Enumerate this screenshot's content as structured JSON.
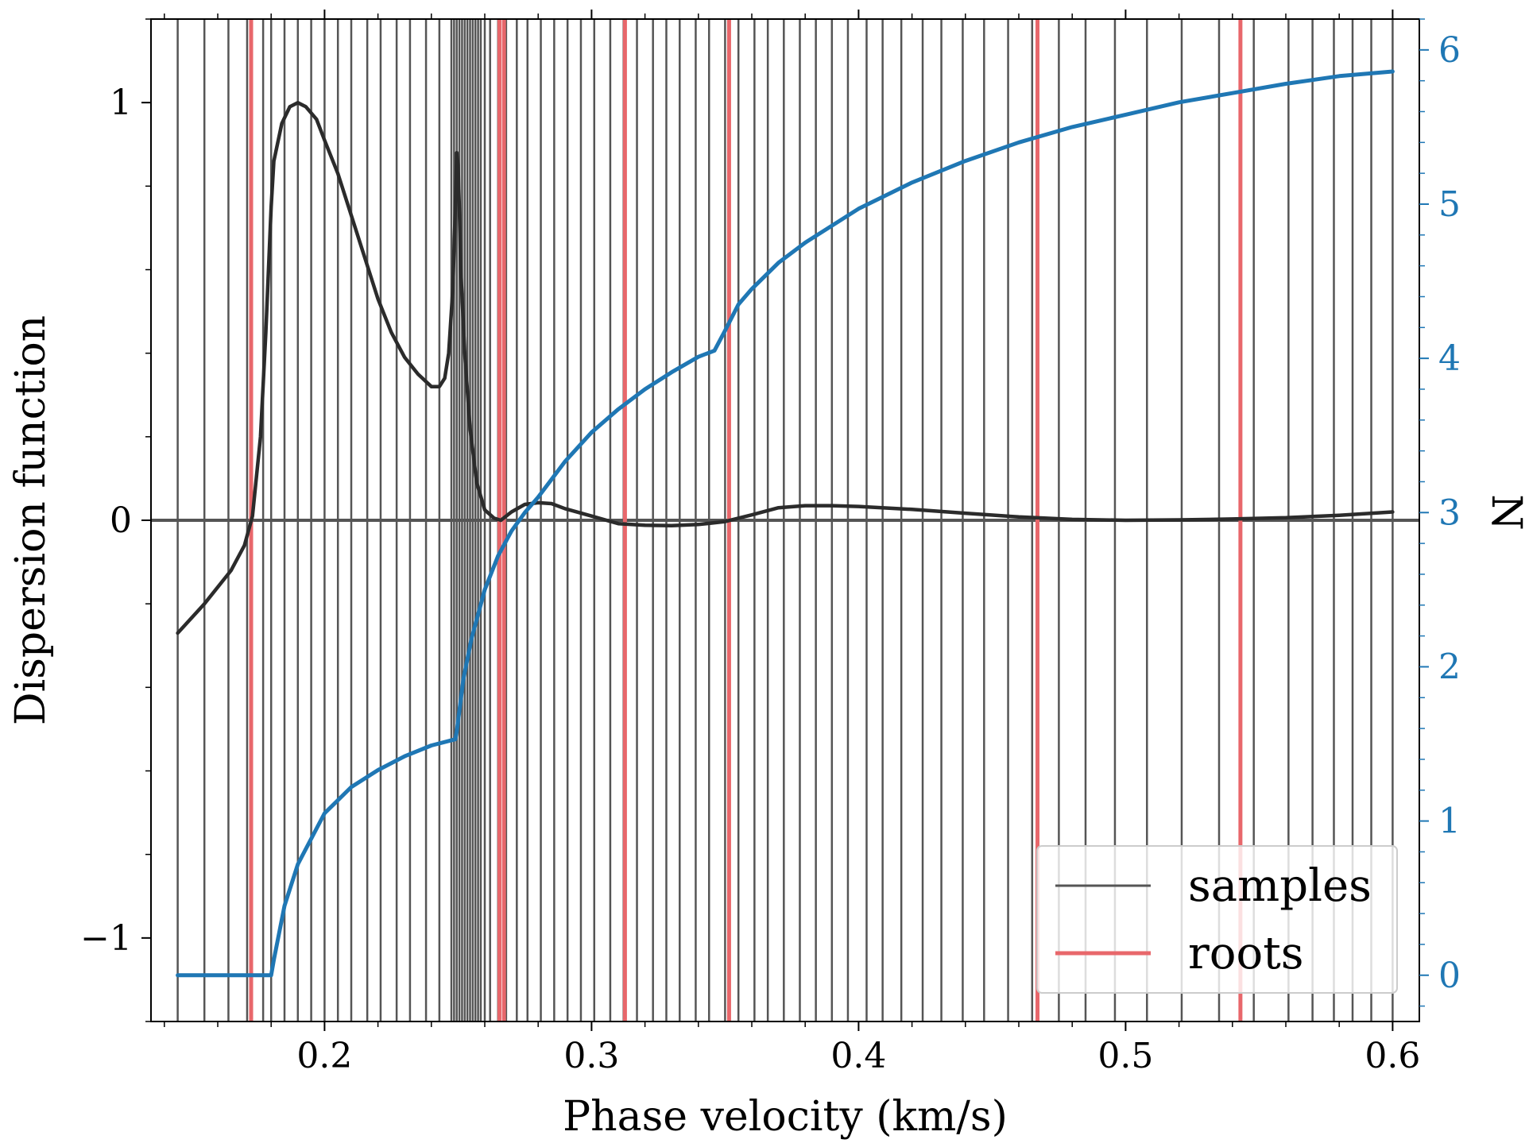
{
  "chart_data": {
    "type": "line",
    "xlabel": "Phase velocity (km/s)",
    "ylabel": "Dispersion function",
    "ylabel_right": "N",
    "xlim": [
      0.135,
      0.61
    ],
    "ylim": [
      -1.2,
      1.2
    ],
    "ylim_right": [
      -0.3,
      6.2
    ],
    "x_ticks": [
      0.2,
      0.3,
      0.4,
      0.5,
      0.6
    ],
    "x_tick_labels": [
      "0.2",
      "0.3",
      "0.4",
      "0.5",
      "0.6"
    ],
    "y_ticks": [
      -1,
      0,
      1
    ],
    "y_tick_labels": [
      "−1",
      "0",
      "1"
    ],
    "y_right_ticks": [
      0,
      1,
      2,
      3,
      4,
      5,
      6
    ],
    "y_right_tick_labels": [
      "0",
      "1",
      "2",
      "3",
      "4",
      "5",
      "6"
    ],
    "grid": false,
    "zero_line": 0,
    "legend": {
      "position": "lower-right",
      "entries": [
        {
          "label": "samples",
          "color": "#555555"
        },
        {
          "label": "roots",
          "color": "#e8676b"
        }
      ]
    },
    "samples": [
      0.145,
      0.155,
      0.164,
      0.171,
      0.177,
      0.18,
      0.185,
      0.19,
      0.195,
      0.2,
      0.205,
      0.21,
      0.216,
      0.221,
      0.227,
      0.232,
      0.238,
      0.243,
      0.2475,
      0.2485,
      0.2495,
      0.2505,
      0.2515,
      0.2525,
      0.2535,
      0.2545,
      0.2555,
      0.2565,
      0.2575,
      0.2585,
      0.26,
      0.262,
      0.265,
      0.268,
      0.272,
      0.276,
      0.281,
      0.286,
      0.291,
      0.296,
      0.301,
      0.307,
      0.312,
      0.317,
      0.323,
      0.328,
      0.333,
      0.339,
      0.344,
      0.35,
      0.355,
      0.361,
      0.366,
      0.372,
      0.378,
      0.384,
      0.39,
      0.396,
      0.403,
      0.409,
      0.416,
      0.424,
      0.431,
      0.439,
      0.447,
      0.456,
      0.465,
      0.475,
      0.485,
      0.496,
      0.508,
      0.521,
      0.535,
      0.548,
      0.561,
      0.57,
      0.578,
      0.585,
      0.592,
      0.6
    ],
    "roots": [
      0.1725,
      0.2655,
      0.2672,
      0.3125,
      0.3515,
      0.467,
      0.543
    ],
    "series": [
      {
        "name": "",
        "axis": "left",
        "color": "#2b2b2b",
        "x": [
          0.145,
          0.155,
          0.165,
          0.17,
          0.173,
          0.176,
          0.178,
          0.18,
          0.181,
          0.184,
          0.187,
          0.19,
          0.193,
          0.197,
          0.2,
          0.205,
          0.21,
          0.215,
          0.22,
          0.225,
          0.23,
          0.235,
          0.24,
          0.243,
          0.245,
          0.2465,
          0.248,
          0.249,
          0.2495,
          0.25,
          0.2505,
          0.251,
          0.2525,
          0.2545,
          0.257,
          0.26,
          0.2635,
          0.266,
          0.27,
          0.275,
          0.28,
          0.285,
          0.29,
          0.3,
          0.31,
          0.32,
          0.33,
          0.34,
          0.35,
          0.36,
          0.37,
          0.38,
          0.39,
          0.4,
          0.42,
          0.44,
          0.46,
          0.48,
          0.5,
          0.52,
          0.54,
          0.56,
          0.58,
          0.6
        ],
        "y": [
          -0.27,
          -0.2,
          -0.12,
          -0.06,
          0.01,
          0.2,
          0.45,
          0.75,
          0.86,
          0.95,
          0.99,
          1.0,
          0.99,
          0.96,
          0.91,
          0.83,
          0.73,
          0.63,
          0.53,
          0.45,
          0.39,
          0.35,
          0.32,
          0.32,
          0.34,
          0.4,
          0.55,
          0.75,
          0.88,
          0.85,
          0.74,
          0.6,
          0.4,
          0.22,
          0.09,
          0.025,
          0.005,
          0.0,
          0.02,
          0.038,
          0.042,
          0.04,
          0.028,
          0.01,
          -0.008,
          -0.012,
          -0.013,
          -0.01,
          -0.003,
          0.013,
          0.03,
          0.035,
          0.035,
          0.033,
          0.026,
          0.017,
          0.008,
          0.002,
          0.0,
          0.001,
          0.003,
          0.006,
          0.012,
          0.02
        ]
      },
      {
        "name": "",
        "axis": "right",
        "color": "#1f77b4",
        "x": [
          0.145,
          0.16,
          0.172,
          0.18,
          0.181,
          0.185,
          0.19,
          0.2,
          0.21,
          0.22,
          0.23,
          0.24,
          0.249,
          0.2495,
          0.252,
          0.255,
          0.26,
          0.265,
          0.27,
          0.275,
          0.28,
          0.29,
          0.3,
          0.31,
          0.32,
          0.33,
          0.34,
          0.346,
          0.35,
          0.355,
          0.36,
          0.37,
          0.38,
          0.4,
          0.42,
          0.44,
          0.46,
          0.48,
          0.5,
          0.52,
          0.54,
          0.56,
          0.58,
          0.6
        ],
        "y": [
          0.0,
          0.0,
          0.0,
          0.0,
          0.1,
          0.45,
          0.72,
          1.05,
          1.22,
          1.33,
          1.42,
          1.49,
          1.53,
          1.58,
          1.92,
          2.18,
          2.5,
          2.72,
          2.88,
          3.0,
          3.1,
          3.33,
          3.52,
          3.67,
          3.8,
          3.91,
          4.01,
          4.05,
          4.18,
          4.35,
          4.45,
          4.62,
          4.75,
          4.97,
          5.14,
          5.28,
          5.4,
          5.5,
          5.58,
          5.66,
          5.72,
          5.78,
          5.83,
          5.86
        ]
      }
    ]
  }
}
